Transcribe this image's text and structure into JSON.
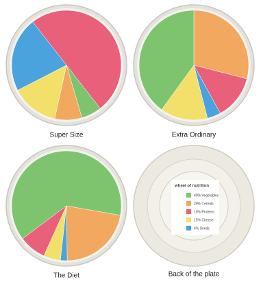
{
  "chart_data": [
    {
      "type": "pie",
      "title": "Super Size",
      "values": [
        50,
        6,
        8,
        14,
        22
      ],
      "colors": [
        "#e8607a",
        "#7ec46f",
        "#f2a85e",
        "#f2e06a",
        "#4aa3dc"
      ]
    },
    {
      "type": "pie",
      "title": "Extra Ordinary",
      "values": [
        29,
        13,
        4,
        14,
        40
      ],
      "colors": [
        "#f2a85e",
        "#e8607a",
        "#4aa3dc",
        "#f2e06a",
        "#7ec46f"
      ]
    },
    {
      "type": "pie",
      "title": "The Diet",
      "values": [
        22,
        2,
        5,
        8,
        63
      ],
      "colors": [
        "#f2a85e",
        "#4aa3dc",
        "#f2e06a",
        "#e8607a",
        "#7ec46f"
      ]
    }
  ],
  "back_plate": {
    "caption": "Back of the plate",
    "legend_title": "wheel of nutrition",
    "items": [
      {
        "label": "40% Vegetables",
        "color": "#7ec46f"
      },
      {
        "label": "29% Cereals",
        "color": "#f2a85e"
      },
      {
        "label": "10% Proteins",
        "color": "#e8607a"
      },
      {
        "label": "15% Cheese",
        "color": "#f2e06a"
      },
      {
        "label": "4% Seeds",
        "color": "#4aa3dc"
      }
    ]
  }
}
